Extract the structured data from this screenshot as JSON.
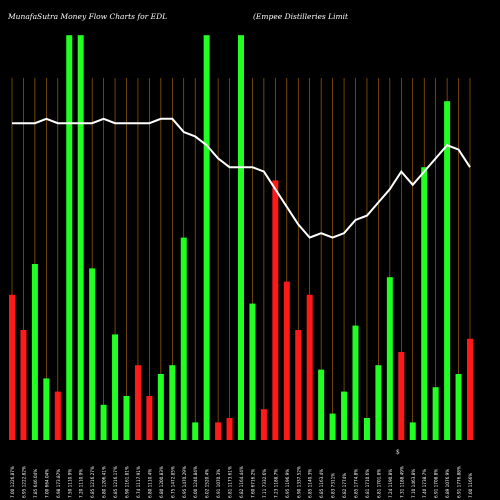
{
  "header": {
    "title_left": "MunafaSutra  Money Flow  Charts for EDL",
    "title_right": "(Empee    Distilleries Limit"
  },
  "footer": {
    "currency_marker": "$"
  },
  "colors": {
    "background": "#000000",
    "up": "#22ff22",
    "down": "#ff1a1a",
    "line": "#ffffff",
    "grid": "#b8720a"
  },
  "chart_data": {
    "type": "bar",
    "title": "MunafaSutra  Money Flow  Charts for EDL",
    "subtitle": "(Empee    Distilleries Limit",
    "ylim": [
      0,
      100
    ],
    "grid": true,
    "categories": [
      "7.00 1226.87%",
      "6.95 1222.82%",
      "7.85 646.04%",
      "7.00 664.04%",
      "6.98 173.87%",
      "7.50 1110.9%",
      "7.20 1110.9%",
      "6.85 1216.27%",
      "6.80 1206.41%",
      "6.85 1216.17%",
      "6.90 1161.81%",
      "6.74 1117.91%",
      "6.80 1110.4%",
      "6.80 1200.83%",
      "6.75 1472.85%",
      "6.95 1470.29%",
      "6.00 1240.84%",
      "6.02 1520.4%",
      "6.91 1070.3%",
      "6.81 1173.61%",
      "6.82 1164.44%",
      "7.60 6716.2%",
      "7.11 7332.6%",
      "7.23 1188.7%",
      "6.95 1196.9%",
      "6.90 1337.52%",
      "6.85 1140.3%",
      "6.85 1163.4%",
      "6.83 7311%",
      "6.82 1774%",
      "6.85 1774.8%",
      "6.81 1710.6%",
      "6.81 1701.8%",
      "7.24 1190.8%",
      "7.31 1188.49%",
      "7.10 1463.8%",
      "7.40 1738.7%",
      "6.91 1708.8%",
      "6.89 1076.9%",
      "6.91 1776.88%",
      "7.00 1166%"
    ],
    "series": [
      {
        "values": [
          33,
          25,
          40,
          14,
          11,
          92,
          92,
          39,
          8,
          24,
          10,
          17,
          10,
          15,
          17,
          46,
          4,
          92,
          4,
          5,
          92,
          31,
          7,
          59,
          36,
          25,
          33,
          16,
          6,
          11,
          26,
          5,
          17,
          37,
          20,
          4,
          62,
          12,
          77,
          15,
          23
        ],
        "direction": [
          "down",
          "down",
          "up",
          "up",
          "down",
          "up",
          "up",
          "up",
          "up",
          "up",
          "up",
          "down",
          "down",
          "up",
          "up",
          "up",
          "up",
          "up",
          "down",
          "down",
          "up",
          "up",
          "down",
          "down",
          "down",
          "down",
          "down",
          "up",
          "up",
          "up",
          "up",
          "up",
          "up",
          "up",
          "down",
          "up",
          "up",
          "up",
          "up",
          "up",
          "down"
        ]
      },
      {
        "values": [
          72,
          72,
          72,
          73,
          72,
          72,
          72,
          72,
          73,
          72,
          72,
          72,
          72,
          73,
          73,
          70,
          69,
          67,
          64,
          62,
          62,
          62,
          61,
          57,
          53,
          49,
          46,
          47,
          46,
          47,
          50,
          51,
          54,
          57,
          61,
          58,
          61,
          64,
          67,
          66,
          62
        ]
      }
    ]
  }
}
